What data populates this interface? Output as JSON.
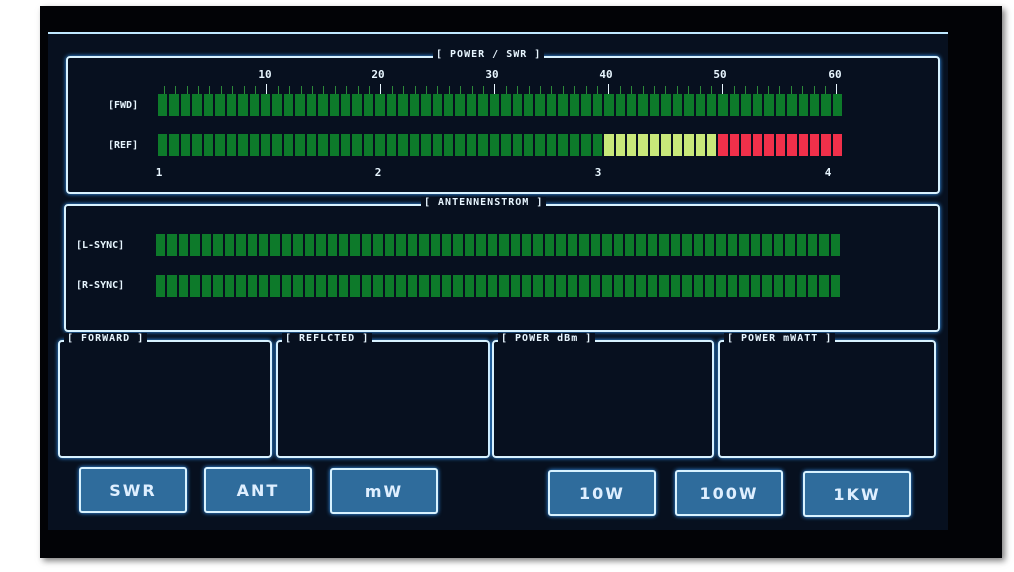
{
  "power_swr": {
    "title": "[ POWER / SWR ]",
    "fwd_label": "[FWD]",
    "ref_label": "[REF]",
    "power_scale": [
      "10",
      "20",
      "30",
      "40",
      "50",
      "60"
    ],
    "swr_scale": [
      "1",
      "2",
      "3",
      "4"
    ],
    "segments": 60,
    "fwd_lit_segments": 60,
    "ref_green_segments": 39,
    "ref_yellow_segments": 10,
    "ref_red_segments": 11
  },
  "antennenstrom": {
    "title": "[ ANTENNENSTROM ]",
    "l_label": "[L-SYNC]",
    "r_label": "[R-SYNC]",
    "segments": 60
  },
  "readouts": [
    {
      "title": "[ FORWARD ]"
    },
    {
      "title": "[ REFLCTED ]"
    },
    {
      "title": "[ POWER dBm ]"
    },
    {
      "title": "[ POWER mWATT ]"
    }
  ],
  "buttons": [
    "SWR",
    "ANT",
    "mW",
    "10W",
    "100W",
    "1KW"
  ],
  "colors": {
    "green": "#0d7a2a",
    "yellow": "#c8e87a",
    "red": "#f0304a",
    "frame": "#d8f2ff",
    "button": "#2f6c9c"
  }
}
